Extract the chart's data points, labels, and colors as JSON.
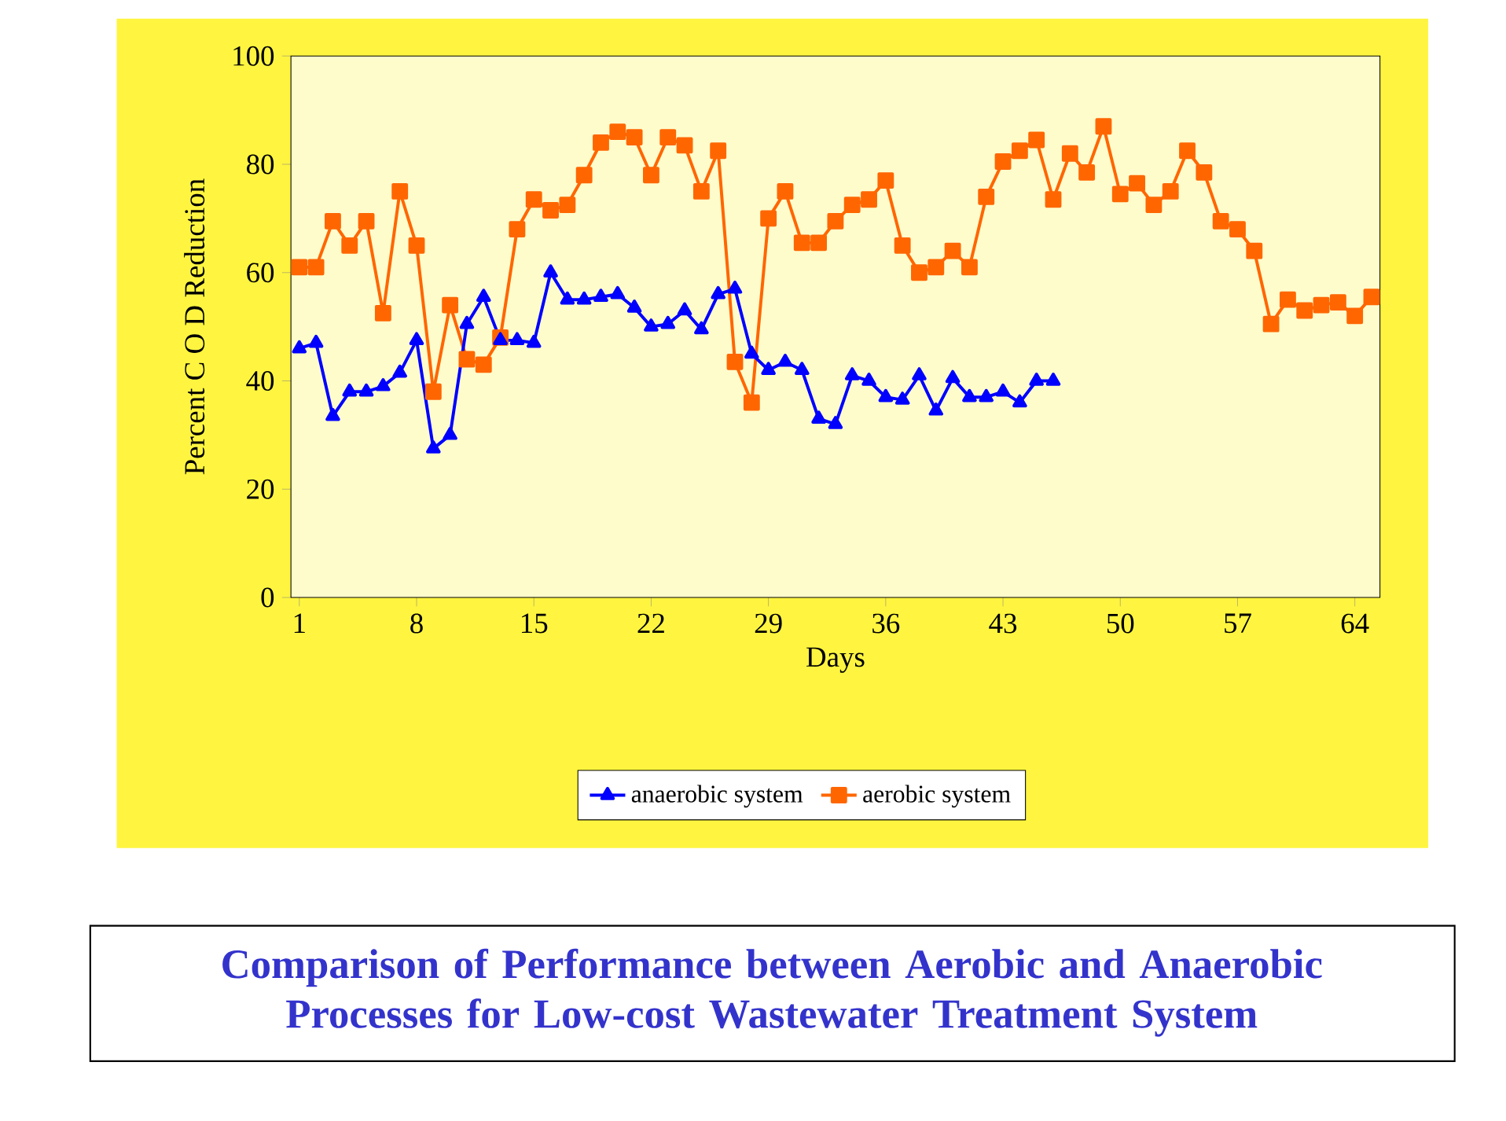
{
  "chart_data": {
    "type": "line",
    "title": "Comparison of Performance between Aerobic and Anaerobic Processes  for Low-cost Wastewater Treatment System",
    "xlabel": "Days",
    "ylabel": "Percent C O D Reduction",
    "xlim": [
      0.5,
      65.5
    ],
    "xticks": [
      1,
      8,
      15,
      22,
      29,
      36,
      43,
      50,
      57,
      64
    ],
    "ylim": [
      0,
      100
    ],
    "yticks": [
      0,
      20,
      40,
      60,
      80,
      100
    ],
    "grid": false,
    "legend": "bottom",
    "line_style": "solid",
    "series": [
      {
        "name": "anaerobic system",
        "color": "#0000ff",
        "marker": "triangle",
        "x": [
          1,
          2,
          3,
          4,
          5,
          6,
          7,
          8,
          9,
          10,
          11,
          12,
          13,
          14,
          15,
          16,
          17,
          18,
          19,
          20,
          21,
          22,
          23,
          24,
          25,
          26,
          27,
          28,
          29,
          30,
          31,
          32,
          33,
          34,
          35,
          36,
          37,
          38,
          39,
          40,
          41,
          42,
          43,
          44,
          45,
          46
        ],
        "values": [
          46,
          47,
          33.5,
          38,
          38,
          39,
          41.5,
          47.5,
          27.5,
          30,
          50.5,
          55.5,
          47.5,
          47.5,
          47,
          60,
          55,
          55,
          55.5,
          56,
          53.5,
          50,
          50.5,
          53,
          49.5,
          56,
          57,
          45,
          42,
          43.5,
          42,
          33,
          32,
          41,
          40,
          37,
          36.5,
          41,
          34.5,
          40.5,
          37,
          37,
          38,
          36,
          40,
          40
        ]
      },
      {
        "name": "aerobic system",
        "color": "#ff6600",
        "marker": "square",
        "x": [
          1,
          2,
          3,
          4,
          5,
          6,
          7,
          8,
          9,
          10,
          11,
          12,
          13,
          14,
          15,
          16,
          17,
          18,
          19,
          20,
          21,
          22,
          23,
          24,
          25,
          26,
          27,
          28,
          29,
          30,
          31,
          32,
          33,
          34,
          35,
          36,
          37,
          38,
          39,
          40,
          41,
          42,
          43,
          44,
          45,
          46,
          47,
          48,
          49,
          50,
          51,
          52,
          53,
          54,
          55,
          56,
          57,
          58,
          59,
          60,
          61,
          62,
          63,
          64,
          65
        ],
        "values": [
          61,
          61,
          69.5,
          65,
          69.5,
          52.5,
          75,
          65,
          38,
          54,
          44,
          43,
          48,
          68,
          73.5,
          71.5,
          72.5,
          78,
          84,
          86,
          85,
          78,
          85,
          83.5,
          75,
          82.5,
          43.5,
          36,
          70,
          75,
          65.5,
          65.5,
          69.5,
          72.5,
          73.5,
          77,
          65,
          60,
          61,
          64,
          61,
          74,
          80.5,
          82.5,
          84.5,
          73.5,
          82,
          78.5,
          87,
          74.5,
          76.5,
          72.5,
          75,
          82.5,
          78.5,
          69.5,
          68,
          64,
          50.5,
          55,
          53,
          54,
          54.5,
          52,
          55.5
        ]
      }
    ]
  }
}
